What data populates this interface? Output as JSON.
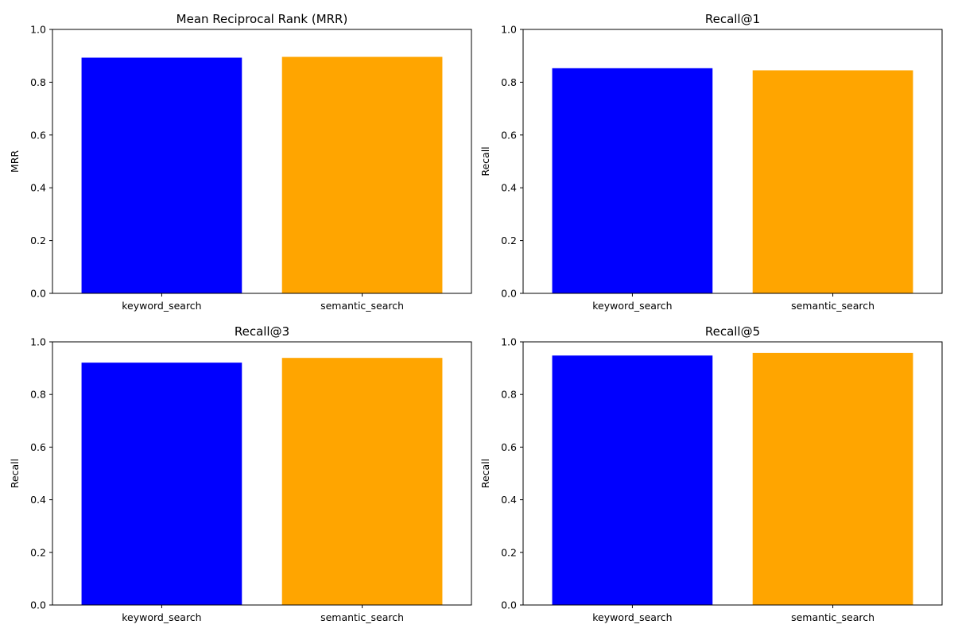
{
  "chart_data": [
    {
      "type": "bar",
      "title": "Mean Reciprocal Rank (MRR)",
      "ylabel": "MRR",
      "xlabel": "",
      "categories": [
        "keyword_search",
        "semantic_search"
      ],
      "values": [
        0.893,
        0.896
      ],
      "colors": [
        "#0000ff",
        "#ffa500"
      ],
      "ylim": [
        0,
        1
      ],
      "yticks": [
        0.0,
        0.2,
        0.4,
        0.6,
        0.8,
        1.0
      ],
      "grid": false
    },
    {
      "type": "bar",
      "title": "Recall@1",
      "ylabel": "Recall",
      "xlabel": "",
      "categories": [
        "keyword_search",
        "semantic_search"
      ],
      "values": [
        0.853,
        0.845
      ],
      "colors": [
        "#0000ff",
        "#ffa500"
      ],
      "ylim": [
        0,
        1
      ],
      "yticks": [
        0.0,
        0.2,
        0.4,
        0.6,
        0.8,
        1.0
      ],
      "grid": false
    },
    {
      "type": "bar",
      "title": "Recall@3",
      "ylabel": "Recall",
      "xlabel": "",
      "categories": [
        "keyword_search",
        "semantic_search"
      ],
      "values": [
        0.921,
        0.939
      ],
      "colors": [
        "#0000ff",
        "#ffa500"
      ],
      "ylim": [
        0,
        1
      ],
      "yticks": [
        0.0,
        0.2,
        0.4,
        0.6,
        0.8,
        1.0
      ],
      "grid": false
    },
    {
      "type": "bar",
      "title": "Recall@5",
      "ylabel": "Recall",
      "xlabel": "",
      "categories": [
        "keyword_search",
        "semantic_search"
      ],
      "values": [
        0.948,
        0.958
      ],
      "colors": [
        "#0000ff",
        "#ffa500"
      ],
      "ylim": [
        0,
        1
      ],
      "yticks": [
        0.0,
        0.2,
        0.4,
        0.6,
        0.8,
        1.0
      ],
      "grid": false
    }
  ]
}
